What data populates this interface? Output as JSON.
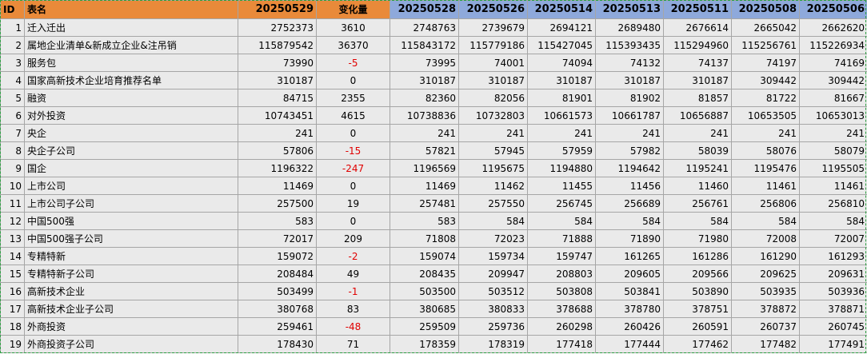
{
  "headers": {
    "id": "ID",
    "name": "表名",
    "current_date": "20250529",
    "change": "变化量",
    "history_dates": [
      "20250528",
      "20250526",
      "20250514",
      "20250513",
      "20250511",
      "20250508",
      "20250506"
    ]
  },
  "colors": {
    "header_orange": "#e98a3a",
    "header_blue": "#8ea9db",
    "negative_text": "#e00000",
    "cell_background": "#eaeaea",
    "selection_border": "#2ea043"
  },
  "rows": [
    {
      "id": "1",
      "name": "迁入迁出",
      "current": "2752373",
      "change": "3610",
      "history": [
        "2748763",
        "2739679",
        "2694121",
        "2689480",
        "2676614",
        "2665042",
        "2662620"
      ]
    },
    {
      "id": "2",
      "name": "属地企业清单&新成立企业&注吊销",
      "current": "115879542",
      "change": "36370",
      "history": [
        "115843172",
        "115779186",
        "115427045",
        "115393435",
        "115294960",
        "115256761",
        "115226934"
      ]
    },
    {
      "id": "3",
      "name": "服务包",
      "current": "73990",
      "change": "-5",
      "history": [
        "73995",
        "74001",
        "74094",
        "74132",
        "74137",
        "74197",
        "74169"
      ]
    },
    {
      "id": "4",
      "name": "国家高新技术企业培育推荐名单",
      "current": "310187",
      "change": "0",
      "history": [
        "310187",
        "310187",
        "310187",
        "310187",
        "310187",
        "309442",
        "309442"
      ]
    },
    {
      "id": "5",
      "name": "融资",
      "current": "84715",
      "change": "2355",
      "history": [
        "82360",
        "82056",
        "81901",
        "81902",
        "81857",
        "81722",
        "81667"
      ]
    },
    {
      "id": "6",
      "name": "对外投资",
      "current": "10743451",
      "change": "4615",
      "history": [
        "10738836",
        "10732803",
        "10661573",
        "10661787",
        "10656887",
        "10653505",
        "10653013"
      ]
    },
    {
      "id": "7",
      "name": "央企",
      "current": "241",
      "change": "0",
      "history": [
        "241",
        "241",
        "241",
        "241",
        "241",
        "241",
        "241"
      ]
    },
    {
      "id": "8",
      "name": "央企子公司",
      "current": "57806",
      "change": "-15",
      "history": [
        "57821",
        "57945",
        "57959",
        "57982",
        "58039",
        "58076",
        "58079"
      ]
    },
    {
      "id": "9",
      "name": "国企",
      "current": "1196322",
      "change": "-247",
      "history": [
        "1196569",
        "1195675",
        "1194880",
        "1194642",
        "1195241",
        "1195476",
        "1195505"
      ]
    },
    {
      "id": "10",
      "name": "上市公司",
      "current": "11469",
      "change": "0",
      "history": [
        "11469",
        "11462",
        "11455",
        "11456",
        "11460",
        "11461",
        "11461"
      ]
    },
    {
      "id": "11",
      "name": "上市公司子公司",
      "current": "257500",
      "change": "19",
      "history": [
        "257481",
        "257550",
        "256745",
        "256689",
        "256761",
        "256806",
        "256810"
      ]
    },
    {
      "id": "12",
      "name": "中国500强",
      "current": "583",
      "change": "0",
      "history": [
        "583",
        "584",
        "584",
        "584",
        "584",
        "584",
        "584"
      ]
    },
    {
      "id": "13",
      "name": "中国500强子公司",
      "current": "72017",
      "change": "209",
      "history": [
        "71808",
        "72023",
        "71888",
        "71890",
        "71980",
        "72008",
        "72007"
      ]
    },
    {
      "id": "14",
      "name": "专精特新",
      "current": "159072",
      "change": "-2",
      "history": [
        "159074",
        "159734",
        "159747",
        "161265",
        "161286",
        "161290",
        "161293"
      ]
    },
    {
      "id": "15",
      "name": "专精特新子公司",
      "current": "208484",
      "change": "49",
      "history": [
        "208435",
        "209947",
        "208803",
        "209605",
        "209566",
        "209625",
        "209631"
      ]
    },
    {
      "id": "16",
      "name": "高新技术企业",
      "current": "503499",
      "change": "-1",
      "history": [
        "503500",
        "503512",
        "503808",
        "503841",
        "503890",
        "503935",
        "503936"
      ]
    },
    {
      "id": "17",
      "name": "高新技术企业子公司",
      "current": "380768",
      "change": "83",
      "history": [
        "380685",
        "380833",
        "378688",
        "378780",
        "378751",
        "378872",
        "378871"
      ]
    },
    {
      "id": "18",
      "name": "外商投资",
      "current": "259461",
      "change": "-48",
      "history": [
        "259509",
        "259736",
        "260298",
        "260426",
        "260591",
        "260737",
        "260745"
      ]
    },
    {
      "id": "19",
      "name": "外商投资子公司",
      "current": "178430",
      "change": "71",
      "history": [
        "178359",
        "178319",
        "177418",
        "177444",
        "177462",
        "177482",
        "177491"
      ]
    }
  ]
}
